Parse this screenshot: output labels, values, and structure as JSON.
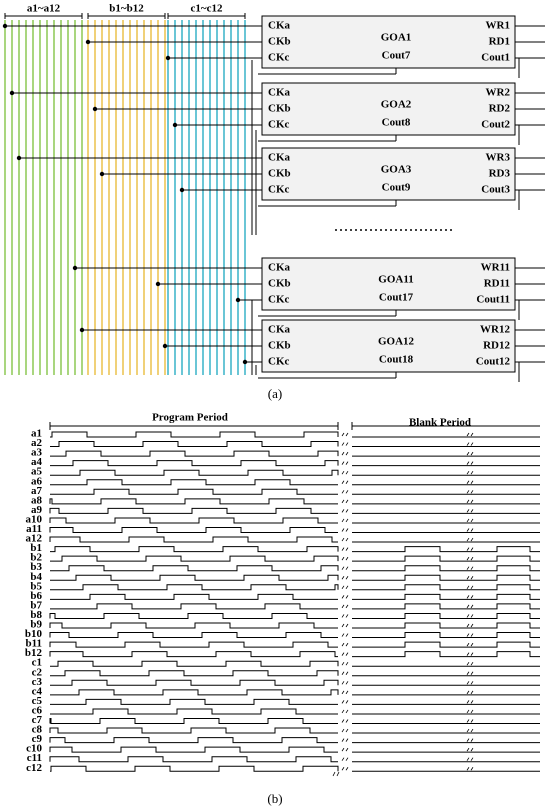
{
  "panel_a": {
    "bus_labels": [
      "a1~a12",
      "b1~b12",
      "c1~c12"
    ],
    "blocks": [
      {
        "inputs": [
          "CKa",
          "CKb",
          "CKc"
        ],
        "name": "GOA1",
        "cout_in": "Cout7",
        "outputs": [
          "WR1",
          "RD1",
          "Cout1"
        ]
      },
      {
        "inputs": [
          "CKa",
          "CKb",
          "CKc"
        ],
        "name": "GOA2",
        "cout_in": "Cout8",
        "outputs": [
          "WR2",
          "RD2",
          "Cout2"
        ]
      },
      {
        "inputs": [
          "CKa",
          "CKb",
          "CKc"
        ],
        "name": "GOA3",
        "cout_in": "Cout9",
        "outputs": [
          "WR3",
          "RD3",
          "Cout3"
        ]
      },
      {
        "inputs": [
          "CKa",
          "CKb",
          "CKc"
        ],
        "name": "GOA11",
        "cout_in": "Cout17",
        "outputs": [
          "WR11",
          "RD11",
          "Cout11"
        ]
      },
      {
        "inputs": [
          "CKa",
          "CKb",
          "CKc"
        ],
        "name": "GOA12",
        "cout_in": "Cout18",
        "outputs": [
          "WR12",
          "RD12",
          "Cout12"
        ]
      }
    ],
    "caption": "(a)"
  },
  "panel_b": {
    "periods": [
      "Program Period",
      "Blank Period"
    ],
    "signals": [
      "a1",
      "a2",
      "a3",
      "a4",
      "a5",
      "a6",
      "a7",
      "a8",
      "a9",
      "a10",
      "a11",
      "a12",
      "b1",
      "b2",
      "b3",
      "b4",
      "b5",
      "b6",
      "b7",
      "b8",
      "b9",
      "b10",
      "b11",
      "b12",
      "c1",
      "c2",
      "c3",
      "c4",
      "c5",
      "c6",
      "c7",
      "c8",
      "c9",
      "c10",
      "c11",
      "c12"
    ],
    "caption": "(b)"
  }
}
